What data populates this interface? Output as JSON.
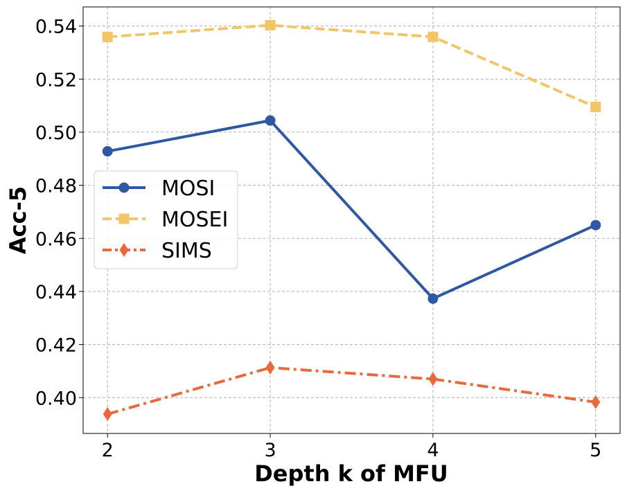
{
  "chart_data": {
    "type": "line",
    "title": "",
    "xlabel": "Depth k of MFU",
    "ylabel": "Acc-5",
    "x": [
      2,
      3,
      4,
      5
    ],
    "xticks": [
      "2",
      "3",
      "4",
      "5"
    ],
    "xlim": [
      1.85,
      5.15
    ],
    "ylim": [
      0.3865,
      0.5472
    ],
    "yticks": [
      "0.40",
      "0.42",
      "0.44",
      "0.46",
      "0.48",
      "0.50",
      "0.52",
      "0.54"
    ],
    "ytick_values": [
      0.4,
      0.42,
      0.44,
      0.46,
      0.48,
      0.5,
      0.52,
      0.54
    ],
    "grid": true,
    "legend_position": "center-left",
    "series": [
      {
        "name": "MOSI",
        "values": [
          0.4928,
          0.5044,
          0.4373,
          0.465
        ],
        "color": "#2E57A4",
        "linestyle": "solid",
        "marker": "circle"
      },
      {
        "name": "MOSEI",
        "values": [
          0.5359,
          0.5403,
          0.5359,
          0.5095
        ],
        "color": "#F2C566",
        "linestyle": "dashed",
        "marker": "square"
      },
      {
        "name": "SIMS",
        "values": [
          0.3938,
          0.4113,
          0.407,
          0.3983
        ],
        "color": "#E8693B",
        "linestyle": "dashdot",
        "marker": "diamond"
      }
    ]
  }
}
